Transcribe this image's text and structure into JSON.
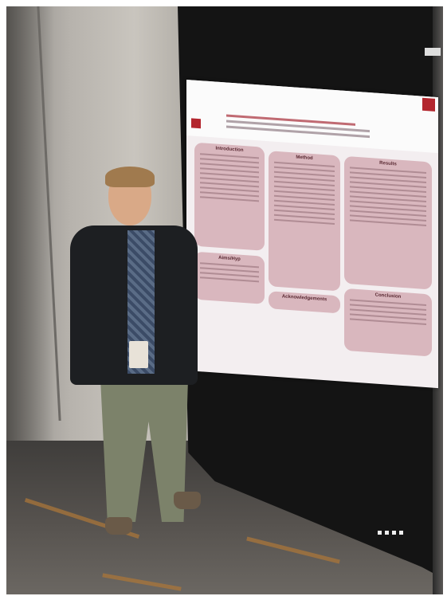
{
  "scene": {
    "description_tags": [
      "person",
      "poster",
      "poster-board"
    ]
  },
  "poster": {
    "section_titles": [
      "Introduction",
      "Method",
      "Results",
      "Aims/Hyp",
      "Acknowledgements",
      "Conclusion"
    ]
  },
  "colors": {
    "poster_accent": "#b3262e",
    "box_fill": "#d9b7be",
    "board": "#141414"
  }
}
